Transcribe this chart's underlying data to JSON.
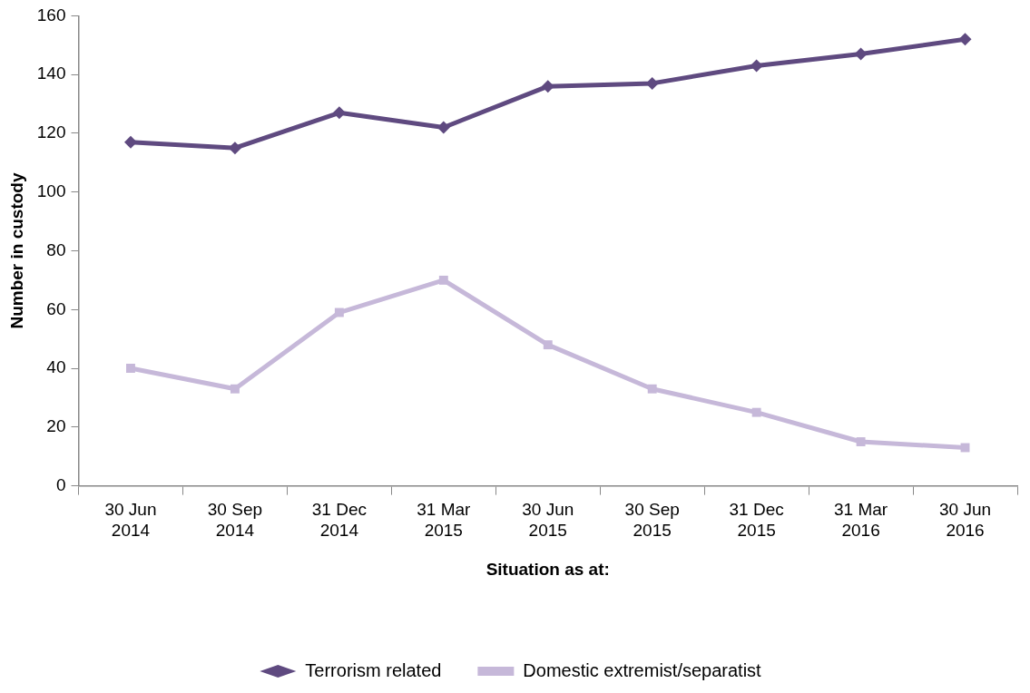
{
  "chart_data": {
    "type": "line",
    "xlabel": "Situation as at:",
    "ylabel": "Number in custody",
    "categories": [
      "30 Jun 2014",
      "30 Sep 2014",
      "31 Dec 2014",
      "31 Mar 2015",
      "30 Jun 2015",
      "30 Sep 2015",
      "31 Dec 2015",
      "31 Mar 2016",
      "30 Jun 2016"
    ],
    "series": [
      {
        "name": "Terrorism related",
        "color": "#5f4a80",
        "marker": "diamond",
        "values": [
          117,
          115,
          127,
          122,
          136,
          137,
          143,
          147,
          152
        ]
      },
      {
        "name": "Domestic extremist/separatist",
        "color": "#c6b8d9",
        "marker": "square",
        "values": [
          40,
          33,
          59,
          70,
          48,
          33,
          25,
          15,
          13
        ]
      }
    ],
    "ylim": [
      0,
      160
    ],
    "yticks": [
      0,
      20,
      40,
      60,
      80,
      100,
      120,
      140,
      160
    ],
    "grid": false,
    "legend": "bottom",
    "line_style": "solid"
  }
}
